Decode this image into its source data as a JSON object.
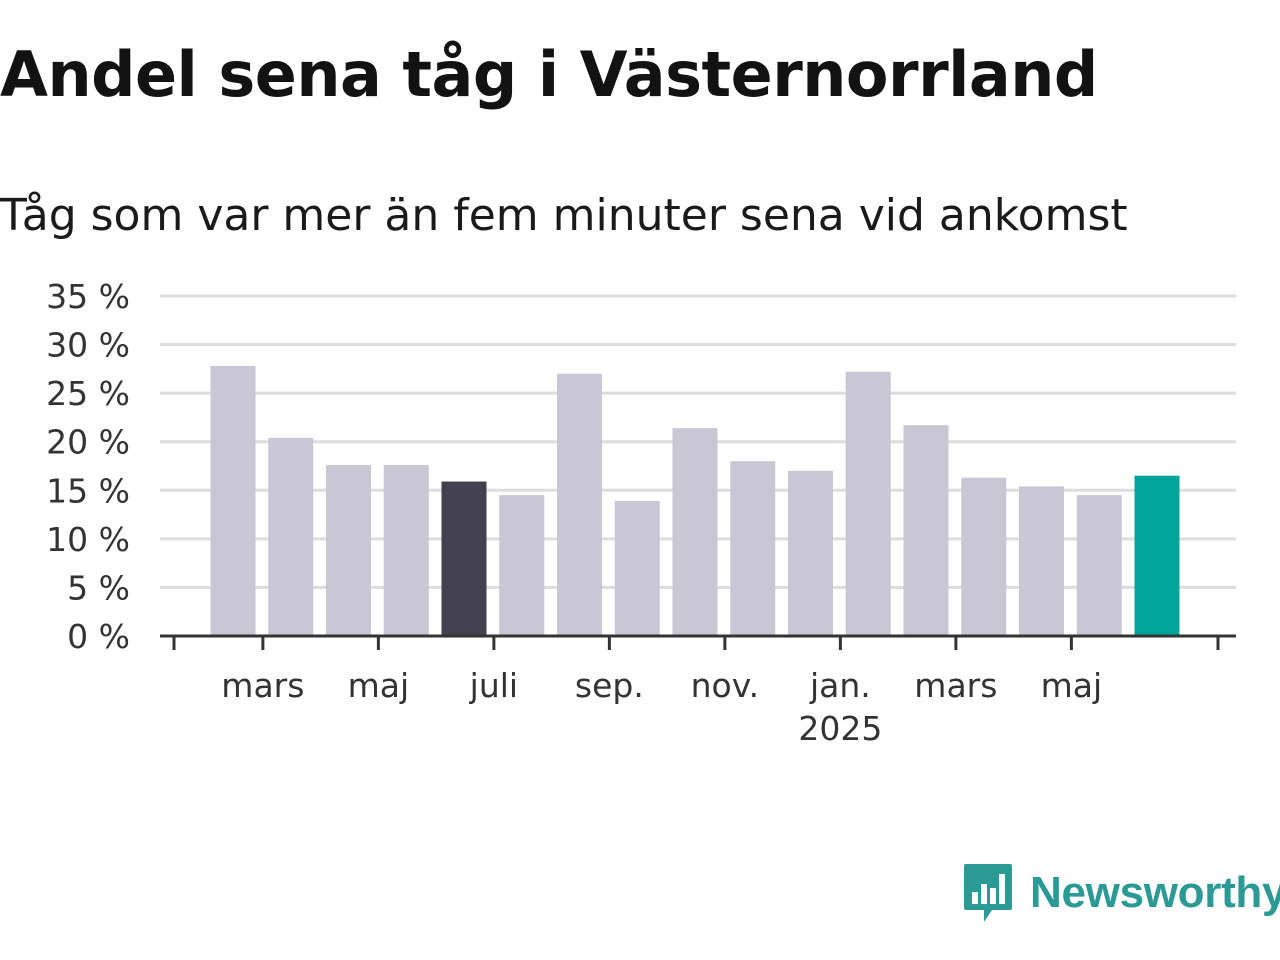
{
  "title": "Andel sena tåg i Västernorrland",
  "subtitle": "Tåg som var mer än fem minuter sena vid ankomst",
  "brand": {
    "name": "Newsworthy",
    "icon": "newsworthy-logo-icon"
  },
  "colors": {
    "bar_default": "#c8c7d3",
    "bar_highlight_dark": "#43414e",
    "bar_highlight_accent": "#00a59a",
    "grid": "#dddddd",
    "axis": "#333333",
    "brand": "#2b9a95"
  },
  "chart_data": {
    "type": "bar",
    "title": "Andel sena tåg i Västernorrland",
    "subtitle": "Tåg som var mer än fem minuter sena vid ankomst",
    "ylim": [
      0,
      35
    ],
    "yticks": [
      0,
      5,
      10,
      15,
      20,
      25,
      30,
      35
    ],
    "ytick_labels": [
      "0 %",
      "5 %",
      "10 %",
      "15 %",
      "20 %",
      "25 %",
      "30 %",
      "35 %"
    ],
    "grid": true,
    "categories": [
      "2024-02",
      "2024-03",
      "2024-04",
      "2024-05",
      "2024-06",
      "2024-07",
      "2024-08",
      "2024-09",
      "2024-10",
      "2024-11",
      "2024-12",
      "2025-01",
      "2025-02",
      "2025-03",
      "2025-04",
      "2025-05",
      "2025-06"
    ],
    "values": [
      27.8,
      20.4,
      17.6,
      17.6,
      15.9,
      14.5,
      27.0,
      13.9,
      21.4,
      18.0,
      17.0,
      27.2,
      21.7,
      16.3,
      15.4,
      14.5,
      16.5
    ],
    "highlight": {
      "2024-06": "dark",
      "2025-06": "accent"
    },
    "x_tick_labels": [
      {
        "category": "2024-03",
        "label": "mars"
      },
      {
        "category": "2024-05",
        "label": "maj"
      },
      {
        "category": "2024-07",
        "label": "juli"
      },
      {
        "category": "2024-09",
        "label": "sep."
      },
      {
        "category": "2024-11",
        "label": "nov."
      },
      {
        "category": "2025-01",
        "label": "jan.",
        "sublabel": "2025"
      },
      {
        "category": "2025-03",
        "label": "mars"
      },
      {
        "category": "2025-05",
        "label": "maj"
      }
    ]
  }
}
